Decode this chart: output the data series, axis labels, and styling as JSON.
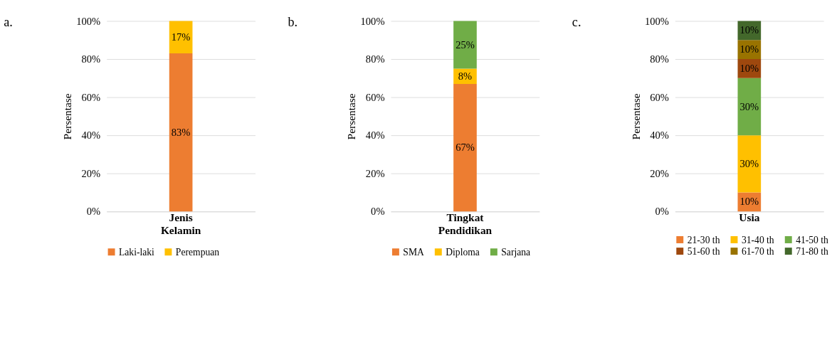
{
  "chart_data": [
    {
      "type": "bar",
      "title": "a.",
      "ylabel": "Persentase",
      "categories": [
        "Jenis Kelamin"
      ],
      "stacked": true,
      "ylim": [
        0,
        100
      ],
      "yticks": [
        {
          "value": 0,
          "label": "0%"
        },
        {
          "value": 20,
          "label": "20%"
        },
        {
          "value": 40,
          "label": "40%"
        },
        {
          "value": 60,
          "label": "60%"
        },
        {
          "value": 80,
          "label": "80%"
        },
        {
          "value": 100,
          "label": "100%"
        }
      ],
      "grid": "y",
      "legend": "bottom",
      "series": [
        {
          "name": "Laki-laki",
          "color": "#ed7d31",
          "values": [
            83
          ],
          "value_labels": [
            "83%"
          ]
        },
        {
          "name": "Perempuan",
          "color": "#ffc000",
          "values": [
            17
          ],
          "value_labels": [
            "17%"
          ]
        }
      ]
    },
    {
      "type": "bar",
      "title": "b.",
      "ylabel": "Persentase",
      "categories": [
        "Tingkat Pendidikan"
      ],
      "stacked": true,
      "ylim": [
        0,
        100
      ],
      "yticks": [
        {
          "value": 0,
          "label": "0%"
        },
        {
          "value": 20,
          "label": "20%"
        },
        {
          "value": 40,
          "label": "40%"
        },
        {
          "value": 60,
          "label": "60%"
        },
        {
          "value": 80,
          "label": "80%"
        },
        {
          "value": 100,
          "label": "100%"
        }
      ],
      "grid": "y",
      "legend": "bottom",
      "series": [
        {
          "name": "SMA",
          "color": "#ed7d31",
          "values": [
            67
          ],
          "value_labels": [
            "67%"
          ]
        },
        {
          "name": "Diploma",
          "color": "#ffc000",
          "values": [
            8
          ],
          "value_labels": [
            "8%"
          ]
        },
        {
          "name": "Sarjana",
          "color": "#70ad47",
          "values": [
            25
          ],
          "value_labels": [
            "25%"
          ]
        }
      ]
    },
    {
      "type": "bar",
      "title": "c.",
      "ylabel": "Persentase",
      "categories": [
        "Usia"
      ],
      "stacked": true,
      "ylim": [
        0,
        100
      ],
      "yticks": [
        {
          "value": 0,
          "label": "0%"
        },
        {
          "value": 20,
          "label": "20%"
        },
        {
          "value": 40,
          "label": "40%"
        },
        {
          "value": 60,
          "label": "60%"
        },
        {
          "value": 80,
          "label": "80%"
        },
        {
          "value": 100,
          "label": "100%"
        }
      ],
      "grid": "y",
      "legend": "bottom",
      "series": [
        {
          "name": "21-30 th",
          "color": "#ed7d31",
          "values": [
            10
          ],
          "value_labels": [
            "10%"
          ]
        },
        {
          "name": "31-40 th",
          "color": "#ffc000",
          "values": [
            30
          ],
          "value_labels": [
            "30%"
          ]
        },
        {
          "name": "41-50 th",
          "color": "#70ad47",
          "values": [
            30
          ],
          "value_labels": [
            "30%"
          ]
        },
        {
          "name": "51-60 th",
          "color": "#9e480e",
          "values": [
            10
          ],
          "value_labels": [
            "10%"
          ]
        },
        {
          "name": "61-70 th",
          "color": "#997300",
          "values": [
            10
          ],
          "value_labels": [
            "10%"
          ]
        },
        {
          "name": "71-80 th",
          "color": "#43682b",
          "values": [
            10
          ],
          "value_labels": [
            "10%"
          ]
        }
      ]
    }
  ]
}
